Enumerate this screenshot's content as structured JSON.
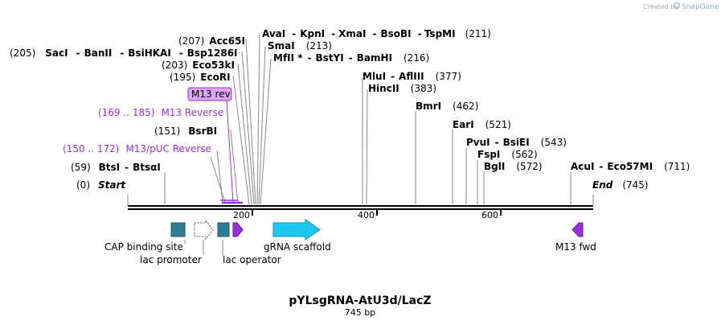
{
  "watermark": {
    "prefix": "Created by",
    "brand": "SnapGene"
  },
  "map": {
    "title": "pYLsgRNA-AtU3d/LacZ",
    "subtitle": "745 bp",
    "length": 745,
    "start_label": "Start",
    "start_pos": "(0)",
    "end_label": "End",
    "end_pos": "(745)",
    "ticks": [
      "200",
      "400",
      "600"
    ]
  },
  "enzymes": [
    {
      "pos": "(205)",
      "parts": [
        "SacI",
        "BanII",
        "BsiHKAI",
        "Bsp1286I"
      ]
    },
    {
      "pos": "(207)",
      "parts": [
        "Acc65I"
      ]
    },
    {
      "pos": "(203)",
      "parts": [
        "Eco53kI"
      ]
    },
    {
      "pos": "(195)",
      "parts": [
        "EcoRI"
      ]
    },
    {
      "pos": "(151)",
      "parts": [
        "BsrBI"
      ]
    },
    {
      "pos": "(59)",
      "parts": [
        "BtsI",
        "BtsαI"
      ]
    },
    {
      "pos": "(211)",
      "parts": [
        "AvaI",
        "KpnI",
        "XmaI",
        "BsoBI",
        "TspMI"
      ]
    },
    {
      "pos": "(213)",
      "parts": [
        "SmaI"
      ]
    },
    {
      "pos": "(216)",
      "parts": [
        "MfII *",
        "BstYI",
        "BamHI"
      ]
    },
    {
      "pos": "(377)",
      "parts": [
        "MluI",
        "AflIII"
      ]
    },
    {
      "pos": "(383)",
      "parts": [
        "HincII"
      ]
    },
    {
      "pos": "(462)",
      "parts": [
        "BmrI"
      ]
    },
    {
      "pos": "(521)",
      "parts": [
        "EarI"
      ]
    },
    {
      "pos": "(543)",
      "parts": [
        "PvuI",
        "BsiEI"
      ]
    },
    {
      "pos": "(562)",
      "parts": [
        "FspI"
      ]
    },
    {
      "pos": "(572)",
      "parts": [
        "BglI"
      ]
    },
    {
      "pos": "(711)",
      "parts": [
        "AcuI",
        "Eco57MI"
      ]
    }
  ],
  "primers": [
    {
      "label": "M13 rev"
    },
    {
      "range": "(169 .. 185)",
      "label": "M13 Reverse"
    },
    {
      "range": "(150 .. 172)",
      "label": "M13/pUC Reverse"
    }
  ],
  "features": [
    {
      "label": "CAP binding site"
    },
    {
      "label": "lac promoter"
    },
    {
      "label": "lac operator"
    },
    {
      "label": "gRNA scaffold"
    },
    {
      "label": "M13 fwd"
    }
  ],
  "colors": {
    "purple": "#9b30d9",
    "teal": "#2e7d92",
    "cyan": "#1fc8f0",
    "primer_box": "#d9a6ef"
  }
}
